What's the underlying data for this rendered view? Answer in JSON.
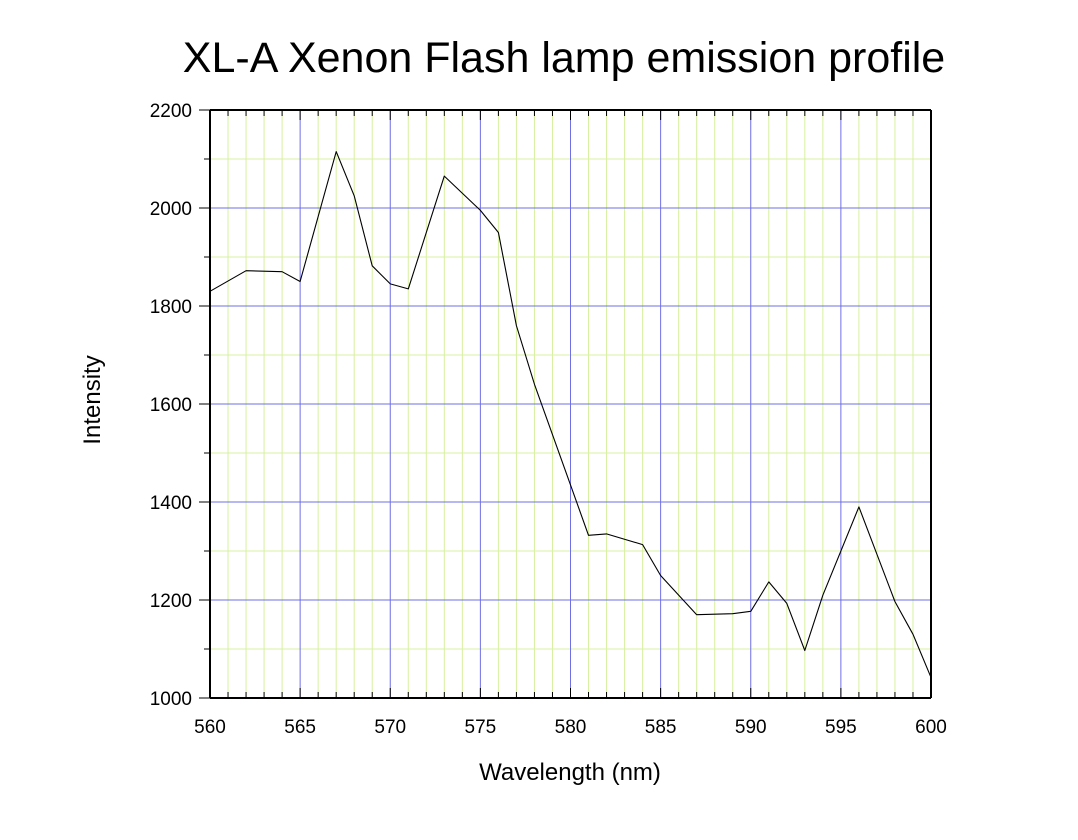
{
  "chart_data": {
    "type": "line",
    "title": "XL-A Xenon Flash lamp emission profile",
    "xlabel": "Wavelength (nm)",
    "ylabel": "Intensity",
    "xlim": [
      560,
      600
    ],
    "ylim": [
      1000,
      2200
    ],
    "x_major_ticks": [
      560,
      565,
      570,
      575,
      580,
      585,
      590,
      595,
      600
    ],
    "x_tick_labels": [
      "560",
      "565",
      "570",
      "575",
      "580",
      "585",
      "590",
      "595",
      "600"
    ],
    "y_major_ticks": [
      1000,
      1200,
      1400,
      1600,
      1800,
      2000,
      2200
    ],
    "y_tick_labels": [
      "1000",
      "1200",
      "1400",
      "1600",
      "1800",
      "2000",
      "2200"
    ],
    "x_minor_step": 1,
    "y_minor_step": 100,
    "grid": true,
    "legend": "none",
    "colors": {
      "major_grid": "#6f6fe6",
      "minor_grid": "#d8f0a0",
      "line": "#000000",
      "axis": "#000000"
    },
    "series": [
      {
        "x": [
          560,
          562,
          564,
          565,
          567,
          568,
          569,
          570,
          571,
          573,
          575,
          576,
          577,
          578,
          580,
          581,
          582,
          584,
          585,
          587,
          589,
          590,
          591,
          592,
          593,
          594,
          596,
          598,
          599,
          600
        ],
        "values": [
          1830,
          1872,
          1870,
          1850,
          2115,
          2025,
          1882,
          1845,
          1835,
          2065,
          1995,
          1950,
          1760,
          1640,
          1435,
          1332,
          1335,
          1313,
          1250,
          1170,
          1172,
          1177,
          1237,
          1193,
          1097,
          1210,
          1390,
          1197,
          1130,
          1042
        ]
      }
    ]
  }
}
